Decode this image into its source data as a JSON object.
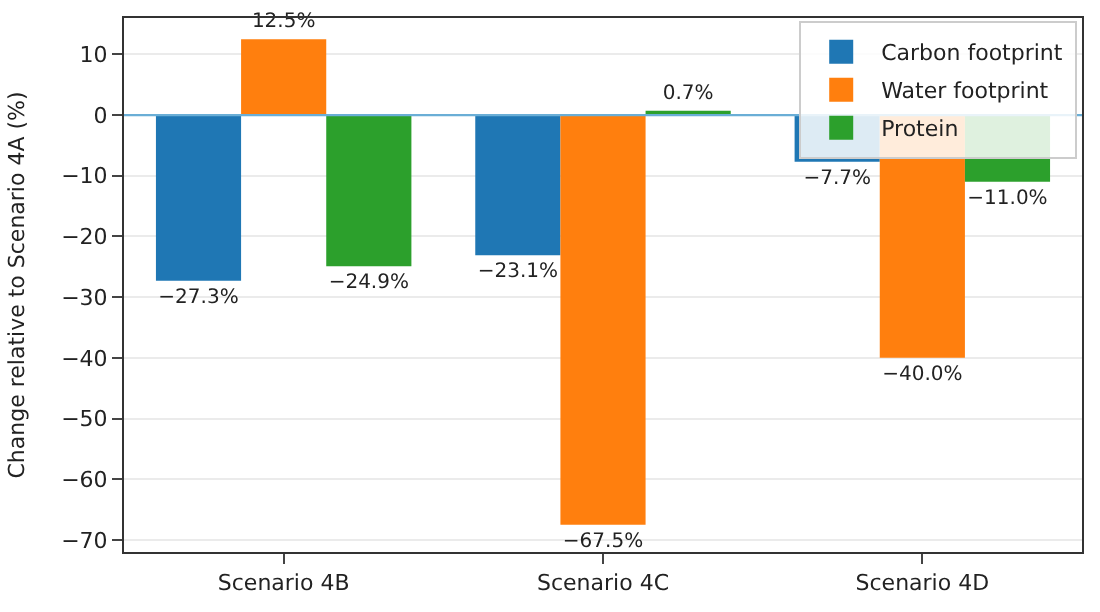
{
  "chart_data": {
    "type": "bar",
    "ylabel": "Change relative to Scenario 4A (%)",
    "categories": [
      "Scenario 4B",
      "Scenario 4C",
      "Scenario 4D"
    ],
    "series": [
      {
        "name": "Carbon footprint",
        "color": "#1f77b4",
        "values": [
          -27.3,
          -23.1,
          -7.7
        ],
        "value_labels": [
          "−27.3%",
          "−23.1%",
          "−7.7%"
        ]
      },
      {
        "name": "Water footprint",
        "color": "#ff7f0e",
        "values": [
          12.5,
          -67.5,
          -40.0
        ],
        "value_labels": [
          "12.5%",
          "−67.5%",
          "−40.0%"
        ]
      },
      {
        "name": "Protein",
        "color": "#2ca02c",
        "values": [
          -24.9,
          0.7,
          -11.0
        ],
        "value_labels": [
          "−24.9%",
          "0.7%",
          "−11.0%"
        ]
      }
    ],
    "ylim": [
      -72,
      16
    ],
    "yticks": [
      -70,
      -60,
      -50,
      -40,
      -30,
      -20,
      -10,
      0,
      10
    ],
    "ref_lines": [
      {
        "axis": "y",
        "value": 0,
        "color": "#6aaed6"
      }
    ],
    "grid": "y",
    "legend": "top right"
  }
}
